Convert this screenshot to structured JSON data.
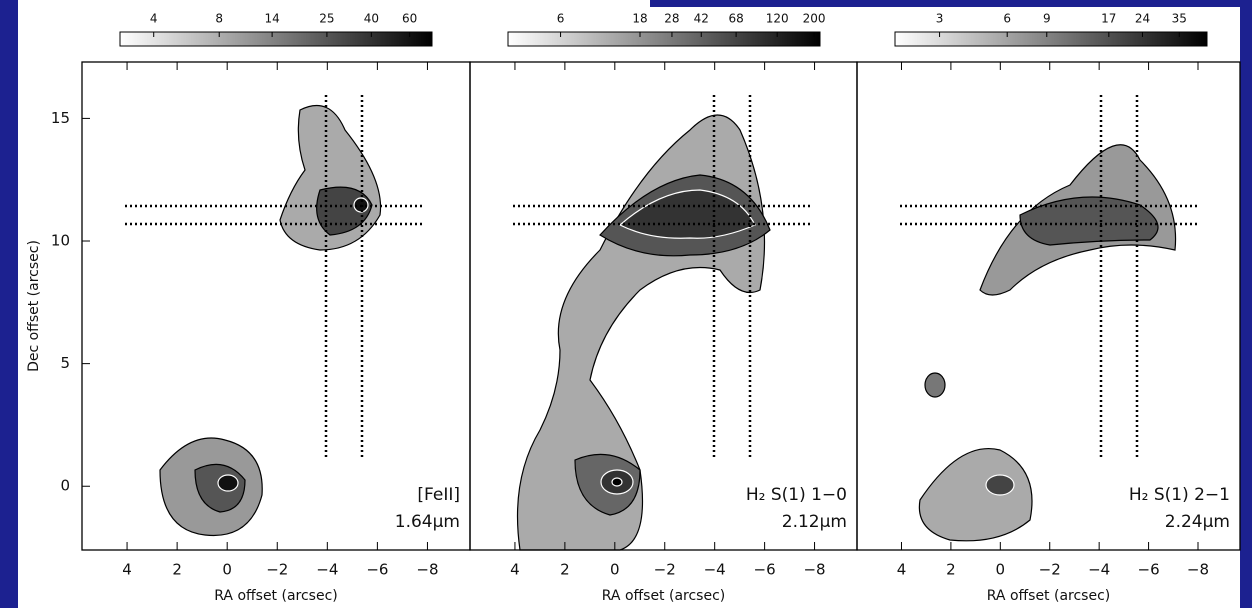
{
  "chart_data": [
    {
      "type": "image",
      "label": "[FeII]",
      "wavelength": "1.64μm",
      "xlabel": "RA offset (arcsec)",
      "ylabel": "Dec offset (arcsec)",
      "xlim": [
        5.8,
        -9.7
      ],
      "ylim": [
        -2.6,
        17.3
      ],
      "xticks": [
        4,
        2,
        0,
        {
          "value": -2,
          "label": "−2"
        },
        {
          "value": -4,
          "label": "−4"
        },
        {
          "value": -6,
          "label": "−6"
        },
        {
          "value": -8,
          "label": "−8"
        }
      ],
      "yticks": [
        0,
        5,
        10,
        15
      ],
      "colorbar": {
        "scale": "log",
        "lim": [
          2.8,
          76
        ],
        "ticks": [
          4,
          8,
          14,
          25,
          40,
          60
        ]
      }
    },
    {
      "type": "image",
      "label": "H₂ S(1) 1−0",
      "wavelength": "2.12μm",
      "xlabel": "RA offset (arcsec)",
      "xlim": [
        5.8,
        -9.7
      ],
      "ylim": [
        -2.6,
        17.3
      ],
      "xticks": [
        4,
        2,
        0,
        {
          "value": -2,
          "label": "−2"
        },
        {
          "value": -4,
          "label": "−4"
        },
        {
          "value": -6,
          "label": "−6"
        },
        {
          "value": -8,
          "label": "−8"
        }
      ],
      "colorbar": {
        "scale": "log",
        "lim": [
          2.9,
          217
        ],
        "ticks": [
          6,
          18,
          28,
          42,
          68,
          120,
          200
        ]
      }
    },
    {
      "type": "image",
      "label": "H₂ S(1) 2−1",
      "wavelength": "2.24μm",
      "xlabel": "RA offset (arcsec)",
      "xlim": [
        5.8,
        -9.7
      ],
      "ylim": [
        -2.6,
        17.3
      ],
      "xticks": [
        4,
        2,
        0,
        {
          "value": -2,
          "label": "−2"
        },
        {
          "value": -4,
          "label": "−4"
        },
        {
          "value": -6,
          "label": "−6"
        },
        {
          "value": -8,
          "label": "−8"
        }
      ],
      "colorbar": {
        "scale": "log",
        "lim": [
          1.9,
          46.5
        ],
        "ticks": [
          3,
          6,
          9,
          17,
          24,
          35
        ]
      }
    }
  ]
}
